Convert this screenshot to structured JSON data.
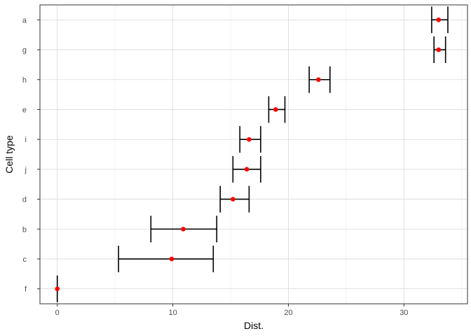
{
  "chart_data": {
    "type": "scatter",
    "title": "",
    "xlabel": "Dist.",
    "ylabel": "Cell type",
    "xlim": [
      -1.5,
      35.5
    ],
    "x_ticks": [
      0,
      10,
      20,
      30
    ],
    "x_tick_labels": [
      "0",
      "10",
      "20",
      "30"
    ],
    "categories": [
      "f",
      "c",
      "b",
      "d",
      "j",
      "i",
      "e",
      "h",
      "g",
      "a"
    ],
    "points": [
      {
        "category": "f",
        "x": 0.0,
        "lower": 0.0,
        "upper": 0.0
      },
      {
        "category": "c",
        "x": 9.9,
        "lower": 5.3,
        "upper": 13.5
      },
      {
        "category": "b",
        "x": 10.9,
        "lower": 8.1,
        "upper": 13.8
      },
      {
        "category": "d",
        "x": 15.2,
        "lower": 14.1,
        "upper": 16.6
      },
      {
        "category": "j",
        "x": 16.4,
        "lower": 15.2,
        "upper": 17.6
      },
      {
        "category": "i",
        "x": 16.6,
        "lower": 15.8,
        "upper": 17.6
      },
      {
        "category": "e",
        "x": 18.9,
        "lower": 18.3,
        "upper": 19.7
      },
      {
        "category": "h",
        "x": 22.6,
        "lower": 21.8,
        "upper": 23.6
      },
      {
        "category": "g",
        "x": 33.0,
        "lower": 32.6,
        "upper": 33.6
      },
      {
        "category": "a",
        "x": 33.0,
        "lower": 32.4,
        "upper": 33.8
      }
    ],
    "grid": true,
    "legend": "none",
    "point_color": "#ff0000",
    "errorbar_color": "#000000",
    "panel_border_color": "#333333",
    "grid_color": "#d9d9d9"
  }
}
